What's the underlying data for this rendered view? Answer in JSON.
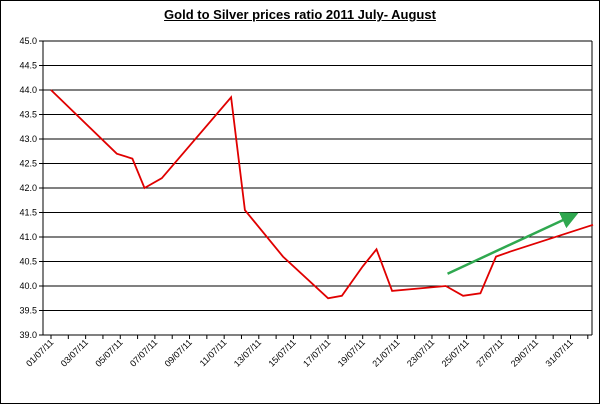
{
  "chart_data": {
    "type": "line",
    "title": "Gold to Silver prices ratio 2011 July- August",
    "xlabel": "",
    "ylabel": "",
    "ylim": [
      39.0,
      45.0
    ],
    "y_ticks": [
      "39.0",
      "39.5",
      "40.0",
      "40.5",
      "41.0",
      "41.5",
      "42.0",
      "42.5",
      "43.0",
      "43.5",
      "44.0",
      "44.5",
      "45.0"
    ],
    "x_tick_labels": [
      "01/07/11",
      "03/07/11",
      "05/07/11",
      "07/07/11",
      "09/07/11",
      "11/07/11",
      "13/07/11",
      "15/07/11",
      "17/07/11",
      "19/07/11",
      "21/07/11",
      "23/07/11",
      "25/07/11",
      "27/07/11",
      "29/07/11",
      "31/07/11"
    ],
    "x_range": [
      0,
      31.3
    ],
    "grid": "horizontal",
    "legend": "none",
    "series": [
      {
        "color": "#e00000",
        "points": [
          {
            "x": 0,
            "y": 44.0
          },
          {
            "x": 3.8,
            "y": 42.7
          },
          {
            "x": 4.7,
            "y": 42.6
          },
          {
            "x": 5.4,
            "y": 42.0
          },
          {
            "x": 6.4,
            "y": 42.2
          },
          {
            "x": 10.4,
            "y": 43.85
          },
          {
            "x": 11.2,
            "y": 41.55
          },
          {
            "x": 13.4,
            "y": 40.6
          },
          {
            "x": 16.0,
            "y": 39.75
          },
          {
            "x": 16.8,
            "y": 39.8
          },
          {
            "x": 18.0,
            "y": 40.4
          },
          {
            "x": 18.8,
            "y": 40.75
          },
          {
            "x": 19.7,
            "y": 39.9
          },
          {
            "x": 22.8,
            "y": 40.0
          },
          {
            "x": 23.8,
            "y": 39.8
          },
          {
            "x": 24.8,
            "y": 39.85
          },
          {
            "x": 25.7,
            "y": 40.6
          },
          {
            "x": 26.5,
            "y": 40.7
          },
          {
            "x": 31.3,
            "y": 41.25
          }
        ]
      }
    ],
    "trend_arrow": {
      "color": "#2fa84f",
      "from": {
        "x": 22.9,
        "y": 40.25
      },
      "to": {
        "x": 30.2,
        "y": 41.45
      }
    }
  }
}
